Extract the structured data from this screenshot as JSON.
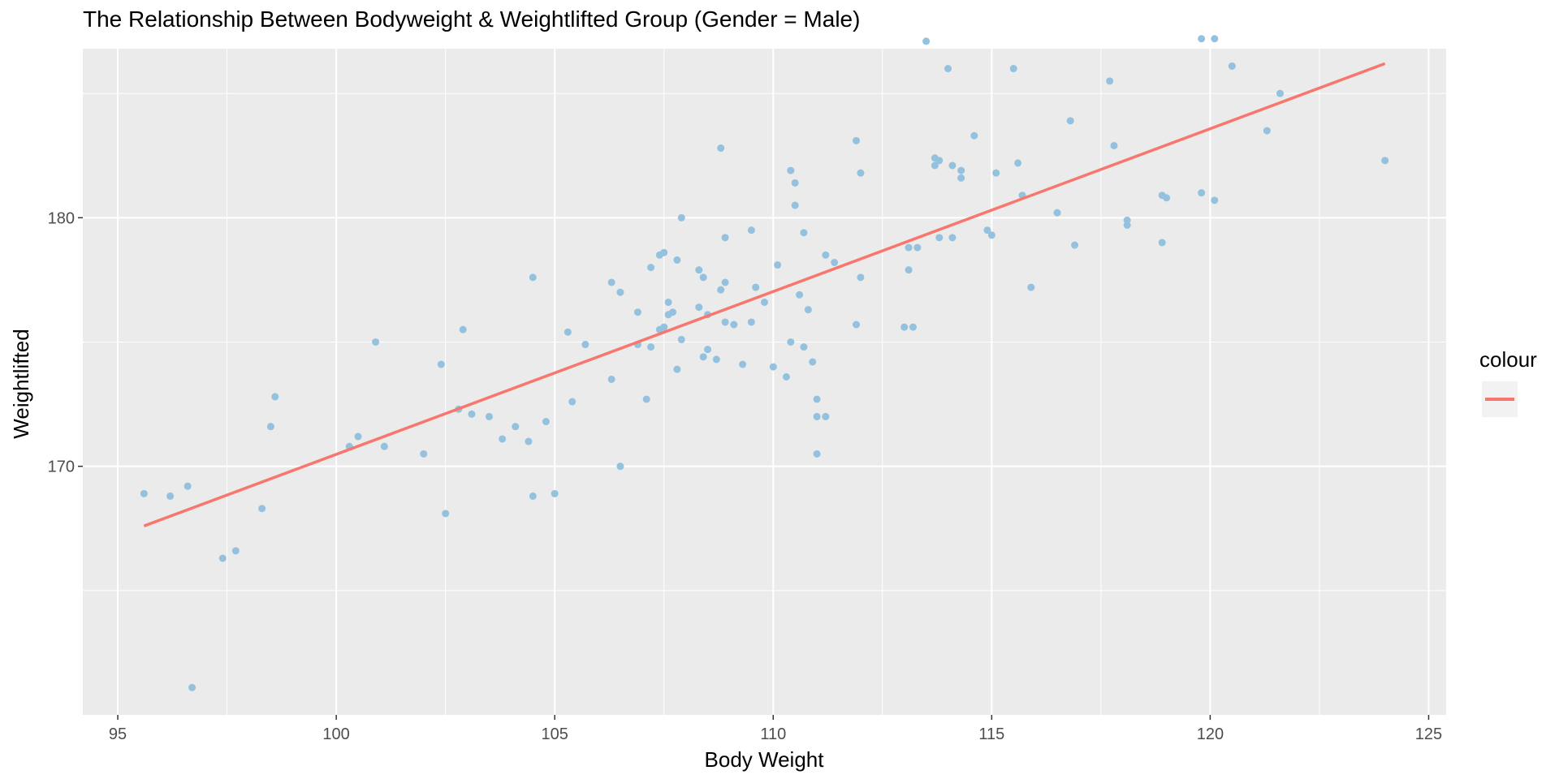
{
  "colors": {
    "panel_bg": "#EBEBEB",
    "grid_major": "#FFFFFF",
    "points": "#93C1DE",
    "line": "#F8766D",
    "legend_key_bg": "#F2F2F2"
  },
  "chart_data": {
    "type": "scatter",
    "title": "The Relationship Between Bodyweight & Weightlifted Group (Gender = Male)",
    "xlabel": "Body Weight",
    "ylabel": "Weightlifted",
    "xlim": [
      94.2,
      125.4
    ],
    "ylim": [
      160.0,
      186.8
    ],
    "x_ticks": [
      95,
      100,
      105,
      110,
      115,
      120,
      125
    ],
    "y_ticks": [
      170,
      180
    ],
    "grid": true,
    "legend": {
      "title": "colour",
      "position": "right",
      "entries": [
        ""
      ]
    },
    "series": [
      {
        "kind": "points",
        "points": [
          [
            95.6,
            168.9
          ],
          [
            96.2,
            168.8
          ],
          [
            96.6,
            169.2
          ],
          [
            96.7,
            161.1
          ],
          [
            97.4,
            166.3
          ],
          [
            97.7,
            166.6
          ],
          [
            98.3,
            168.3
          ],
          [
            98.5,
            171.6
          ],
          [
            98.6,
            172.8
          ],
          [
            100.3,
            170.8
          ],
          [
            100.5,
            171.2
          ],
          [
            100.9,
            175.0
          ],
          [
            101.1,
            170.8
          ],
          [
            102.0,
            170.5
          ],
          [
            102.4,
            174.1
          ],
          [
            102.5,
            168.1
          ],
          [
            102.8,
            172.3
          ],
          [
            102.9,
            175.5
          ],
          [
            103.1,
            172.1
          ],
          [
            103.5,
            172.0
          ],
          [
            103.8,
            171.1
          ],
          [
            104.1,
            171.6
          ],
          [
            104.4,
            171.0
          ],
          [
            104.5,
            177.6
          ],
          [
            104.5,
            168.8
          ],
          [
            104.8,
            171.8
          ],
          [
            105.0,
            168.9
          ],
          [
            105.3,
            175.4
          ],
          [
            105.4,
            172.6
          ],
          [
            105.7,
            174.9
          ],
          [
            106.3,
            177.4
          ],
          [
            106.3,
            173.5
          ],
          [
            106.5,
            170.0
          ],
          [
            106.5,
            177.0
          ],
          [
            106.9,
            176.2
          ],
          [
            106.9,
            174.9
          ],
          [
            107.1,
            172.7
          ],
          [
            107.2,
            178.0
          ],
          [
            107.2,
            174.8
          ],
          [
            107.4,
            178.5
          ],
          [
            107.4,
            175.5
          ],
          [
            107.5,
            178.6
          ],
          [
            107.5,
            175.6
          ],
          [
            107.6,
            176.1
          ],
          [
            107.6,
            176.6
          ],
          [
            107.7,
            176.2
          ],
          [
            107.8,
            178.3
          ],
          [
            107.8,
            173.9
          ],
          [
            107.9,
            180.0
          ],
          [
            107.9,
            175.1
          ],
          [
            108.3,
            177.9
          ],
          [
            108.3,
            176.4
          ],
          [
            108.4,
            177.6
          ],
          [
            108.4,
            174.4
          ],
          [
            108.5,
            176.1
          ],
          [
            108.5,
            174.7
          ],
          [
            108.7,
            174.3
          ],
          [
            108.8,
            182.8
          ],
          [
            108.8,
            177.1
          ],
          [
            108.9,
            179.2
          ],
          [
            108.9,
            177.4
          ],
          [
            108.9,
            175.8
          ],
          [
            109.1,
            175.7
          ],
          [
            109.3,
            174.1
          ],
          [
            109.5,
            179.5
          ],
          [
            109.5,
            175.8
          ],
          [
            109.6,
            177.2
          ],
          [
            109.8,
            176.6
          ],
          [
            110.0,
            174.0
          ],
          [
            110.1,
            178.1
          ],
          [
            110.3,
            173.6
          ],
          [
            110.4,
            181.9
          ],
          [
            110.4,
            175.0
          ],
          [
            110.5,
            181.4
          ],
          [
            110.5,
            180.5
          ],
          [
            110.6,
            176.9
          ],
          [
            110.7,
            179.4
          ],
          [
            110.7,
            174.8
          ],
          [
            110.8,
            176.3
          ],
          [
            110.9,
            174.2
          ],
          [
            111.0,
            172.7
          ],
          [
            111.0,
            172.0
          ],
          [
            111.0,
            170.5
          ],
          [
            111.2,
            178.5
          ],
          [
            111.2,
            172.0
          ],
          [
            111.4,
            178.2
          ],
          [
            111.9,
            183.1
          ],
          [
            111.9,
            175.7
          ],
          [
            112.0,
            181.8
          ],
          [
            112.0,
            177.6
          ],
          [
            113.0,
            175.6
          ],
          [
            113.1,
            178.8
          ],
          [
            113.1,
            177.9
          ],
          [
            113.2,
            175.6
          ],
          [
            113.3,
            178.8
          ],
          [
            113.5,
            187.1
          ],
          [
            113.7,
            182.4
          ],
          [
            113.7,
            182.1
          ],
          [
            113.8,
            182.3
          ],
          [
            113.8,
            179.2
          ],
          [
            114.0,
            186.0
          ],
          [
            114.1,
            182.1
          ],
          [
            114.1,
            179.2
          ],
          [
            114.3,
            181.9
          ],
          [
            114.3,
            181.6
          ],
          [
            114.6,
            183.3
          ],
          [
            114.9,
            179.5
          ],
          [
            115.0,
            179.3
          ],
          [
            115.1,
            181.8
          ],
          [
            115.5,
            186.0
          ],
          [
            115.6,
            182.2
          ],
          [
            115.7,
            180.9
          ],
          [
            115.9,
            177.2
          ],
          [
            116.5,
            180.2
          ],
          [
            116.8,
            183.9
          ],
          [
            116.9,
            178.9
          ],
          [
            117.7,
            185.5
          ],
          [
            117.8,
            182.9
          ],
          [
            118.1,
            179.9
          ],
          [
            118.1,
            179.7
          ],
          [
            118.9,
            180.9
          ],
          [
            118.9,
            179.0
          ],
          [
            119.0,
            180.8
          ],
          [
            119.8,
            187.2
          ],
          [
            119.8,
            181.0
          ],
          [
            120.1,
            187.2
          ],
          [
            120.1,
            180.7
          ],
          [
            120.5,
            186.1
          ],
          [
            121.3,
            183.5
          ],
          [
            121.6,
            185.0
          ],
          [
            124.0,
            182.3
          ]
        ]
      },
      {
        "kind": "line",
        "points": [
          [
            95.6,
            167.6
          ],
          [
            124.0,
            186.2
          ]
        ]
      }
    ]
  }
}
